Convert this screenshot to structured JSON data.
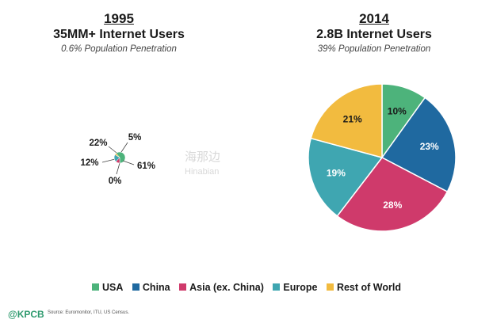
{
  "chart_data": [
    {
      "type": "pie",
      "year": "1995",
      "title": "35MM+ Internet Users",
      "subtitle": "0.6% Population Penetration",
      "categories": [
        "USA",
        "China",
        "Asia (ex. China)",
        "Europe",
        "Rest of World"
      ],
      "values": [
        61,
        0,
        12,
        22,
        5
      ],
      "labels": [
        "61%",
        "0%",
        "12%",
        "22%",
        "5%"
      ]
    },
    {
      "type": "pie",
      "year": "2014",
      "title": "2.8B Internet Users",
      "subtitle": "39% Population Penetration",
      "categories": [
        "USA",
        "China",
        "Asia (ex. China)",
        "Europe",
        "Rest of World"
      ],
      "values": [
        10,
        23,
        28,
        19,
        21
      ],
      "labels": [
        "10%",
        "23%",
        "28%",
        "19%",
        "21%"
      ]
    }
  ],
  "colors": {
    "USA": "#4db37b",
    "China": "#1f69a0",
    "Asia (ex. China)": "#cf3a6b",
    "Europe": "#3fa6b1",
    "Rest of World": "#f2bb3f"
  },
  "legend": [
    {
      "label": "USA",
      "color": "#4db37b"
    },
    {
      "label": "China",
      "color": "#1f69a0"
    },
    {
      "label": "Asia (ex. China)",
      "color": "#cf3a6b"
    },
    {
      "label": "Europe",
      "color": "#3fa6b1"
    },
    {
      "label": "Rest of World",
      "color": "#f2bb3f"
    }
  ],
  "footer": {
    "logo": "@KPCB",
    "source": "Source: Euromonitor, ITU, US Census."
  },
  "watermark": {
    "line1": "海那边",
    "line2": "Hinabian"
  }
}
